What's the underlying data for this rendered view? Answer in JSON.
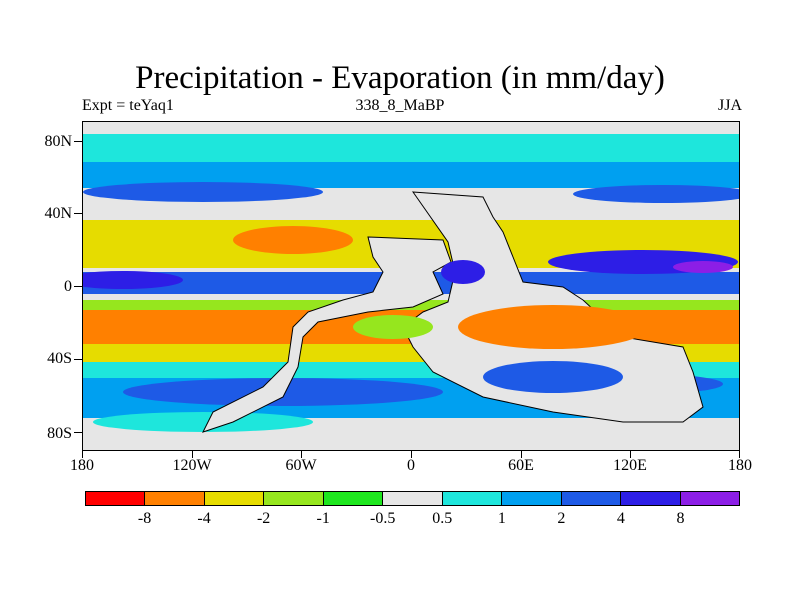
{
  "title": "Precipitation - Evaporation (in mm/day)",
  "left_string": "Expt = teYaq1",
  "center_string": "338_8_MaBP",
  "right_string": "JJA",
  "axes": {
    "y_ticks": [
      "80N",
      "40N",
      "0",
      "40S",
      "80S"
    ],
    "x_ticks": [
      "180",
      "120W",
      "60W",
      "0",
      "60E",
      "120E",
      "180"
    ]
  },
  "colorbar": {
    "colors": [
      "#ff0000",
      "#ff8000",
      "#e6dc00",
      "#96e61e",
      "#1ee61e",
      "#e6e6e6",
      "#1ee6dc",
      "#00a0f0",
      "#1e5ae6",
      "#2d1ee6",
      "#8c1ee6"
    ],
    "labels": [
      "-8",
      "-4",
      "-2",
      "-1",
      "-0.5",
      "0.5",
      "1",
      "2",
      "4",
      "8"
    ]
  },
  "chart_data": {
    "type": "heatmap",
    "title": "Precipitation - Evaporation (in mm/day)",
    "projection": "cylindrical equidistant",
    "lon_range": [
      -180,
      180
    ],
    "lat_range": [
      -90,
      90
    ],
    "contour_levels": [
      -8,
      -4,
      -2,
      -1,
      -0.5,
      0.5,
      1,
      2,
      4,
      8
    ],
    "missing_value_color": "#e6e6e6"
  }
}
